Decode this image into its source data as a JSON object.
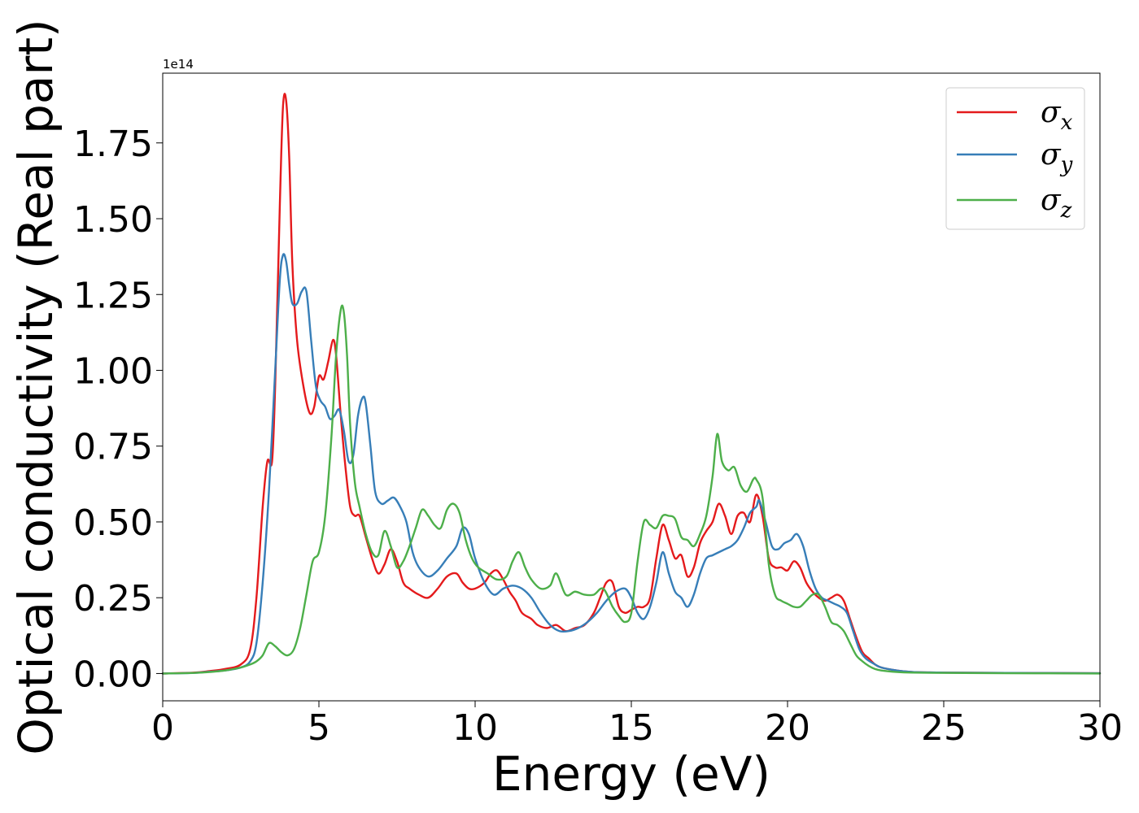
{
  "chart_data": {
    "type": "line",
    "title": "",
    "xlabel": "Energy (eV)",
    "ylabel": "Optical conductivity (Real part)",
    "offset_text": "1e14",
    "y_scale_factor": 100000000000000.0,
    "xlim": [
      0,
      30
    ],
    "ylim": [
      -0.09,
      1.98
    ],
    "xticks": [
      0,
      5,
      10,
      15,
      20,
      25,
      30
    ],
    "xtick_labels": [
      "0",
      "5",
      "10",
      "15",
      "20",
      "25",
      "30"
    ],
    "yticks": [
      0.0,
      0.25,
      0.5,
      0.75,
      1.0,
      1.25,
      1.5,
      1.75
    ],
    "ytick_labels": [
      "0.00",
      "0.25",
      "0.50",
      "0.75",
      "1.00",
      "1.25",
      "1.50",
      "1.75"
    ],
    "grid": false,
    "legend_position": "top-right",
    "series": [
      {
        "name": "σx",
        "legend_base": "σ",
        "legend_sub": "x",
        "color": "#e41a1c",
        "x": [
          0,
          1,
          1.5,
          2,
          2.5,
          2.8,
          3.0,
          3.2,
          3.35,
          3.5,
          3.6,
          3.75,
          3.85,
          3.95,
          4.05,
          4.15,
          4.3,
          4.5,
          4.7,
          4.85,
          5.0,
          5.15,
          5.3,
          5.45,
          5.55,
          5.7,
          5.85,
          6.0,
          6.15,
          6.3,
          6.5,
          6.7,
          6.9,
          7.1,
          7.3,
          7.5,
          7.7,
          7.9,
          8.2,
          8.5,
          8.8,
          9.1,
          9.4,
          9.6,
          9.8,
          10.0,
          10.3,
          10.5,
          10.7,
          10.9,
          11.1,
          11.3,
          11.5,
          11.8,
          12.0,
          12.3,
          12.6,
          12.9,
          13.2,
          13.5,
          13.8,
          14.0,
          14.2,
          14.4,
          14.6,
          14.8,
          15.0,
          15.2,
          15.4,
          15.6,
          15.8,
          16.0,
          16.2,
          16.4,
          16.6,
          16.8,
          17.0,
          17.2,
          17.4,
          17.6,
          17.8,
          18.0,
          18.2,
          18.4,
          18.6,
          18.8,
          19.0,
          19.2,
          19.4,
          19.6,
          19.8,
          20.0,
          20.2,
          20.4,
          20.6,
          20.8,
          21.0,
          21.2,
          21.4,
          21.6,
          21.8,
          22.0,
          22.2,
          22.4,
          22.6,
          22.8,
          23.0,
          23.5,
          24,
          25,
          27,
          30
        ],
        "y": [
          0.0,
          0.003,
          0.008,
          0.015,
          0.03,
          0.08,
          0.25,
          0.55,
          0.7,
          0.7,
          0.95,
          1.55,
          1.87,
          1.89,
          1.7,
          1.35,
          1.1,
          0.95,
          0.86,
          0.88,
          0.98,
          0.97,
          1.03,
          1.1,
          1.05,
          0.85,
          0.68,
          0.55,
          0.52,
          0.52,
          0.45,
          0.38,
          0.33,
          0.36,
          0.41,
          0.37,
          0.3,
          0.28,
          0.26,
          0.25,
          0.28,
          0.32,
          0.33,
          0.3,
          0.28,
          0.28,
          0.3,
          0.33,
          0.34,
          0.31,
          0.27,
          0.24,
          0.2,
          0.18,
          0.16,
          0.15,
          0.16,
          0.14,
          0.15,
          0.16,
          0.2,
          0.25,
          0.3,
          0.3,
          0.22,
          0.2,
          0.21,
          0.22,
          0.22,
          0.25,
          0.38,
          0.49,
          0.44,
          0.38,
          0.39,
          0.32,
          0.35,
          0.43,
          0.47,
          0.5,
          0.56,
          0.52,
          0.46,
          0.52,
          0.53,
          0.5,
          0.59,
          0.52,
          0.38,
          0.35,
          0.35,
          0.34,
          0.37,
          0.35,
          0.3,
          0.27,
          0.25,
          0.24,
          0.25,
          0.26,
          0.24,
          0.18,
          0.12,
          0.07,
          0.05,
          0.03,
          0.02,
          0.01,
          0.005,
          0.003,
          0.002,
          0.001
        ]
      },
      {
        "name": "σy",
        "legend_base": "σ",
        "legend_sub": "y",
        "color": "#377eb8",
        "x": [
          0,
          1,
          1.5,
          2,
          2.5,
          2.8,
          3.0,
          3.2,
          3.4,
          3.6,
          3.75,
          3.85,
          3.95,
          4.05,
          4.15,
          4.3,
          4.45,
          4.6,
          4.75,
          4.9,
          5.05,
          5.2,
          5.35,
          5.5,
          5.65,
          5.8,
          5.95,
          6.1,
          6.25,
          6.4,
          6.5,
          6.65,
          6.8,
          7.0,
          7.2,
          7.4,
          7.6,
          7.8,
          8.0,
          8.2,
          8.5,
          8.8,
          9.1,
          9.4,
          9.6,
          9.8,
          10.0,
          10.3,
          10.6,
          10.9,
          11.2,
          11.5,
          11.8,
          12.1,
          12.4,
          12.7,
          13.0,
          13.3,
          13.6,
          13.9,
          14.2,
          14.5,
          14.8,
          15.0,
          15.2,
          15.4,
          15.6,
          15.8,
          16.0,
          16.2,
          16.4,
          16.6,
          16.8,
          17.0,
          17.2,
          17.4,
          17.6,
          17.8,
          18.0,
          18.2,
          18.4,
          18.6,
          18.8,
          19.0,
          19.1,
          19.3,
          19.5,
          19.7,
          19.9,
          20.1,
          20.3,
          20.5,
          20.7,
          20.9,
          21.1,
          21.3,
          21.5,
          21.7,
          21.9,
          22.1,
          22.3,
          22.5,
          22.8,
          23.0,
          23.5,
          24,
          25,
          27,
          30
        ],
        "y": [
          0.0,
          0.002,
          0.006,
          0.01,
          0.02,
          0.04,
          0.1,
          0.3,
          0.6,
          1.0,
          1.3,
          1.38,
          1.36,
          1.28,
          1.22,
          1.22,
          1.26,
          1.26,
          1.1,
          0.95,
          0.9,
          0.88,
          0.84,
          0.85,
          0.87,
          0.8,
          0.7,
          0.72,
          0.85,
          0.91,
          0.89,
          0.75,
          0.6,
          0.56,
          0.57,
          0.58,
          0.55,
          0.5,
          0.4,
          0.35,
          0.32,
          0.34,
          0.38,
          0.42,
          0.48,
          0.46,
          0.38,
          0.3,
          0.26,
          0.28,
          0.29,
          0.28,
          0.25,
          0.2,
          0.16,
          0.14,
          0.14,
          0.15,
          0.17,
          0.2,
          0.24,
          0.27,
          0.28,
          0.25,
          0.2,
          0.18,
          0.22,
          0.3,
          0.4,
          0.33,
          0.27,
          0.25,
          0.22,
          0.26,
          0.33,
          0.38,
          0.39,
          0.4,
          0.41,
          0.42,
          0.44,
          0.48,
          0.53,
          0.55,
          0.57,
          0.5,
          0.42,
          0.41,
          0.43,
          0.44,
          0.46,
          0.42,
          0.34,
          0.28,
          0.25,
          0.24,
          0.23,
          0.22,
          0.2,
          0.14,
          0.08,
          0.05,
          0.03,
          0.02,
          0.01,
          0.005,
          0.003,
          0.002,
          0.001
        ]
      },
      {
        "name": "σz",
        "legend_base": "σ",
        "legend_sub": "z",
        "color": "#4daf4a",
        "x": [
          0,
          1,
          1.5,
          2,
          2.5,
          2.8,
          3.0,
          3.2,
          3.4,
          3.6,
          3.8,
          4.0,
          4.2,
          4.4,
          4.6,
          4.8,
          5.0,
          5.2,
          5.4,
          5.55,
          5.7,
          5.8,
          5.9,
          6.0,
          6.15,
          6.3,
          6.5,
          6.7,
          6.9,
          7.1,
          7.3,
          7.5,
          7.7,
          7.9,
          8.1,
          8.3,
          8.5,
          8.7,
          8.9,
          9.1,
          9.3,
          9.5,
          9.7,
          9.9,
          10.1,
          10.4,
          10.7,
          11.0,
          11.2,
          11.4,
          11.6,
          11.8,
          12.1,
          12.4,
          12.6,
          12.9,
          13.2,
          13.5,
          13.8,
          14.1,
          14.4,
          14.6,
          14.8,
          15.0,
          15.2,
          15.4,
          15.6,
          15.8,
          16.0,
          16.2,
          16.4,
          16.6,
          16.8,
          17.0,
          17.2,
          17.4,
          17.6,
          17.75,
          17.9,
          18.1,
          18.3,
          18.5,
          18.7,
          18.9,
          19.0,
          19.2,
          19.4,
          19.6,
          19.8,
          20.0,
          20.2,
          20.4,
          20.6,
          20.8,
          21.0,
          21.2,
          21.4,
          21.6,
          21.8,
          22.0,
          22.2,
          22.4,
          22.6,
          22.8,
          23.0,
          23.5,
          24,
          25,
          27,
          30
        ],
        "y": [
          0.0,
          0.002,
          0.005,
          0.01,
          0.02,
          0.03,
          0.04,
          0.06,
          0.1,
          0.09,
          0.07,
          0.06,
          0.08,
          0.15,
          0.26,
          0.37,
          0.4,
          0.52,
          0.78,
          1.05,
          1.2,
          1.19,
          1.05,
          0.82,
          0.63,
          0.55,
          0.46,
          0.4,
          0.39,
          0.47,
          0.42,
          0.35,
          0.37,
          0.42,
          0.48,
          0.54,
          0.52,
          0.49,
          0.48,
          0.54,
          0.56,
          0.53,
          0.44,
          0.38,
          0.35,
          0.33,
          0.31,
          0.32,
          0.37,
          0.4,
          0.35,
          0.31,
          0.28,
          0.29,
          0.33,
          0.26,
          0.27,
          0.26,
          0.26,
          0.28,
          0.22,
          0.19,
          0.17,
          0.2,
          0.37,
          0.5,
          0.49,
          0.48,
          0.52,
          0.52,
          0.51,
          0.45,
          0.44,
          0.42,
          0.46,
          0.52,
          0.65,
          0.79,
          0.7,
          0.67,
          0.68,
          0.62,
          0.6,
          0.64,
          0.64,
          0.58,
          0.36,
          0.26,
          0.24,
          0.23,
          0.22,
          0.22,
          0.24,
          0.26,
          0.26,
          0.22,
          0.17,
          0.16,
          0.14,
          0.1,
          0.06,
          0.04,
          0.025,
          0.015,
          0.01,
          0.005,
          0.003,
          0.002,
          0.001,
          0.0
        ]
      }
    ]
  }
}
